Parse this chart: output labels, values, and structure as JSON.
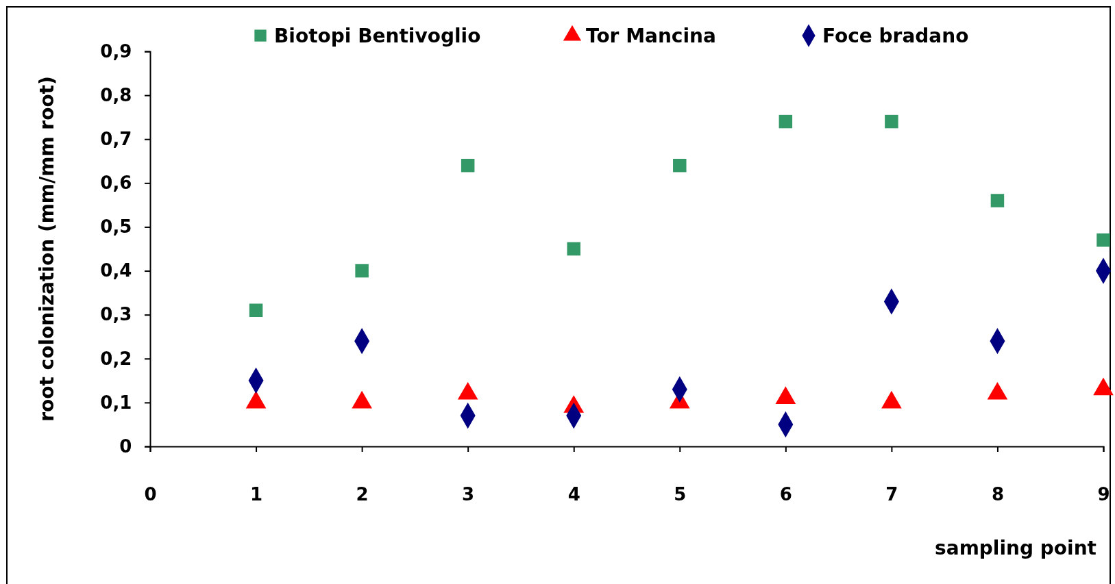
{
  "chart_data": {
    "type": "scatter",
    "xlabel": "sampling point",
    "ylabel": "root colonization (mm/mm root)",
    "x": [
      1,
      2,
      3,
      4,
      5,
      6,
      7,
      8,
      9
    ],
    "series": [
      {
        "name": "Biotopi Bentivoglio",
        "color": "#339966",
        "marker": "square",
        "values": [
          0.31,
          0.4,
          0.64,
          0.45,
          0.64,
          0.74,
          0.74,
          0.56,
          0.47
        ]
      },
      {
        "name": "Tor Mancina",
        "color": "#ff0000",
        "marker": "triangle",
        "values": [
          0.1,
          0.1,
          0.12,
          0.09,
          0.1,
          0.11,
          0.1,
          0.12,
          0.13
        ]
      },
      {
        "name": "Foce bradano",
        "color": "#000080",
        "marker": "diamond",
        "values": [
          0.15,
          0.24,
          0.07,
          0.07,
          0.13,
          0.05,
          0.33,
          0.24,
          0.4
        ]
      }
    ],
    "xlim": [
      0,
      9
    ],
    "xticks": [
      0,
      1,
      2,
      3,
      4,
      5,
      6,
      7,
      8,
      9
    ],
    "ylim": [
      0,
      0.9
    ],
    "yticks": [
      0,
      {
        "value": 0.1,
        "label": "0,1"
      },
      {
        "value": 0.2,
        "label": "0,2"
      },
      {
        "value": 0.3,
        "label": "0,3"
      },
      {
        "value": 0.4,
        "label": "0,4"
      },
      {
        "value": 0.5,
        "label": "0,5"
      },
      {
        "value": 0.6,
        "label": "0,6"
      },
      {
        "value": 0.7,
        "label": "0,7"
      },
      {
        "value": 0.8,
        "label": "0,8"
      },
      {
        "value": 0.9,
        "label": "0,9"
      }
    ],
    "grid": false,
    "legend": "top"
  }
}
